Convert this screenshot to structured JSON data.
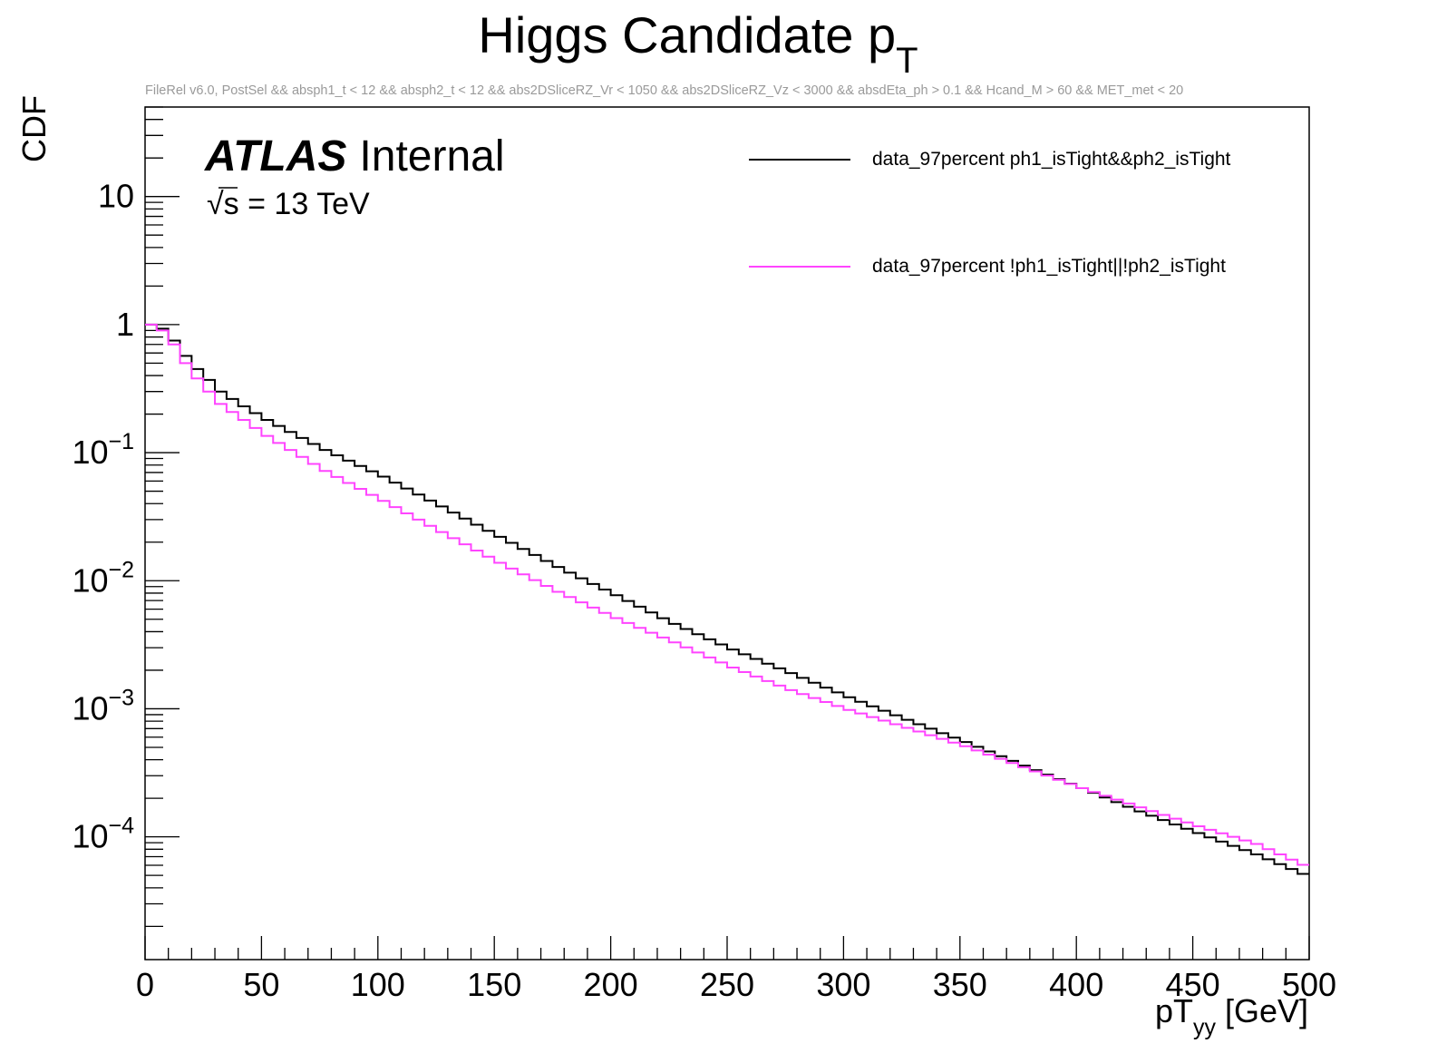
{
  "chart_data": {
    "type": "line",
    "title": "Higgs Candidate p",
    "title_subscript": "T",
    "subtitle": "FileRel v6.0, PostSel &&  absph1_t < 12 && absph2_t < 12 && abs2DSliceRZ_Vr < 1050 && abs2DSliceRZ_Vz < 3000 && absdEta_ph > 0.1 && Hcand_M > 60 && MET_met < 20",
    "xlabel_main": "pT",
    "xlabel_sub": "yy",
    "xlabel_unit": " [GeV]",
    "ylabel": "CDF",
    "xlim": [
      0,
      500
    ],
    "ylim": [
      1.1e-05,
      50
    ],
    "yscale": "log",
    "grid": false,
    "legend_position": "top-right",
    "xticks": [
      "0",
      "50",
      "100",
      "150",
      "200",
      "250",
      "300",
      "350",
      "400",
      "450",
      "500"
    ],
    "yticks": [
      {
        "base": "10",
        "exp": "−4",
        "value": 0.0001
      },
      {
        "base": "10",
        "exp": "−3",
        "value": 0.001
      },
      {
        "base": "10",
        "exp": "−2",
        "value": 0.01
      },
      {
        "base": "10",
        "exp": "−1",
        "value": 0.1
      },
      {
        "base": "1",
        "exp": "",
        "value": 1
      },
      {
        "base": "10",
        "exp": "",
        "value": 10
      }
    ],
    "atlas_label": "ATLAS",
    "atlas_status": "Internal",
    "energy_root": "√",
    "energy_label": "s = 13 TeV",
    "bin_width": 5,
    "series": [
      {
        "name": "data_97percent ph1_isTight&&ph2_isTight",
        "color": "#000000",
        "anchors": [
          [
            0,
            1.0
          ],
          [
            5,
            0.93
          ],
          [
            10,
            0.75
          ],
          [
            15,
            0.57
          ],
          [
            20,
            0.45
          ],
          [
            25,
            0.37
          ],
          [
            30,
            0.3
          ],
          [
            40,
            0.23
          ],
          [
            50,
            0.18
          ],
          [
            60,
            0.145
          ],
          [
            75,
            0.105
          ],
          [
            100,
            0.065
          ],
          [
            125,
            0.038
          ],
          [
            150,
            0.022
          ],
          [
            175,
            0.0128
          ],
          [
            200,
            0.0077
          ],
          [
            225,
            0.0046
          ],
          [
            250,
            0.0029
          ],
          [
            275,
            0.0019
          ],
          [
            300,
            0.00123
          ],
          [
            325,
            0.00082
          ],
          [
            350,
            0.00055
          ],
          [
            375,
            0.00036
          ],
          [
            400,
            0.00024
          ],
          [
            425,
            0.000158
          ],
          [
            450,
            0.000107
          ],
          [
            475,
            7.3e-05
          ],
          [
            500,
            4.7e-05
          ]
        ]
      },
      {
        "name": "data_97percent !ph1_isTight||!ph2_isTight",
        "color": "#ff44ff",
        "anchors": [
          [
            0,
            1.0
          ],
          [
            5,
            0.9
          ],
          [
            10,
            0.7
          ],
          [
            15,
            0.5
          ],
          [
            20,
            0.38
          ],
          [
            25,
            0.3
          ],
          [
            30,
            0.24
          ],
          [
            40,
            0.18
          ],
          [
            50,
            0.135
          ],
          [
            60,
            0.105
          ],
          [
            75,
            0.072
          ],
          [
            100,
            0.042
          ],
          [
            125,
            0.024
          ],
          [
            150,
            0.0138
          ],
          [
            175,
            0.0082
          ],
          [
            200,
            0.0051
          ],
          [
            225,
            0.0033
          ],
          [
            250,
            0.0021
          ],
          [
            275,
            0.0014
          ],
          [
            300,
            0.00098
          ],
          [
            325,
            0.00071
          ],
          [
            350,
            0.00051
          ],
          [
            375,
            0.00035
          ],
          [
            400,
            0.00024
          ],
          [
            425,
            0.00017
          ],
          [
            450,
            0.000121
          ],
          [
            475,
            8.8e-05
          ],
          [
            500,
            5.5e-05
          ]
        ]
      }
    ]
  }
}
